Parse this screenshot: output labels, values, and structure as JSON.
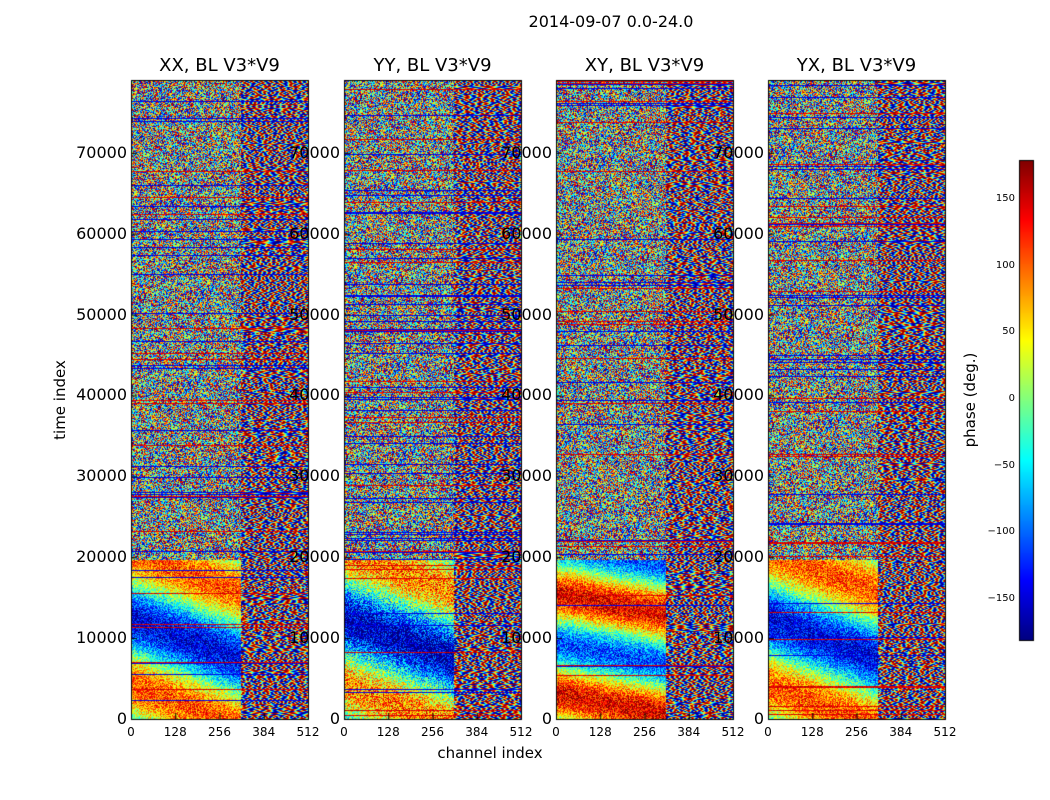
{
  "chart_data": {
    "type": "heatmap",
    "title": "2014-09-07 0.0-24.0",
    "xlabel": "channel index",
    "ylabel": "time index",
    "colorbar_label": "phase (deg.)",
    "colormap": "jet",
    "xlim": [
      0,
      512
    ],
    "ylim": [
      0,
      79000
    ],
    "clim": [
      -180,
      180
    ],
    "x_ticks": [
      "0",
      "128",
      "256",
      "384",
      "512"
    ],
    "x_tick_values": [
      0,
      128,
      256,
      384,
      512
    ],
    "y_ticks": [
      "0",
      "10000",
      "20000",
      "30000",
      "40000",
      "50000",
      "60000",
      "70000"
    ],
    "y_tick_values": [
      0,
      10000,
      20000,
      30000,
      40000,
      50000,
      60000,
      70000
    ],
    "colorbar_ticks": [
      "150",
      "100",
      "50",
      "0",
      "−50",
      "−100",
      "−150"
    ],
    "colorbar_tick_values": [
      150,
      100,
      50,
      0,
      -50,
      -100,
      -150
    ],
    "panels": [
      {
        "title": "XX, BL V3*V9",
        "pol": "XX"
      },
      {
        "title": "YY, BL V3*V9",
        "pol": "YY"
      },
      {
        "title": "XY, BL V3*V9",
        "pol": "XY"
      },
      {
        "title": "YX, BL V3*V9",
        "pol": "YX"
      }
    ]
  }
}
